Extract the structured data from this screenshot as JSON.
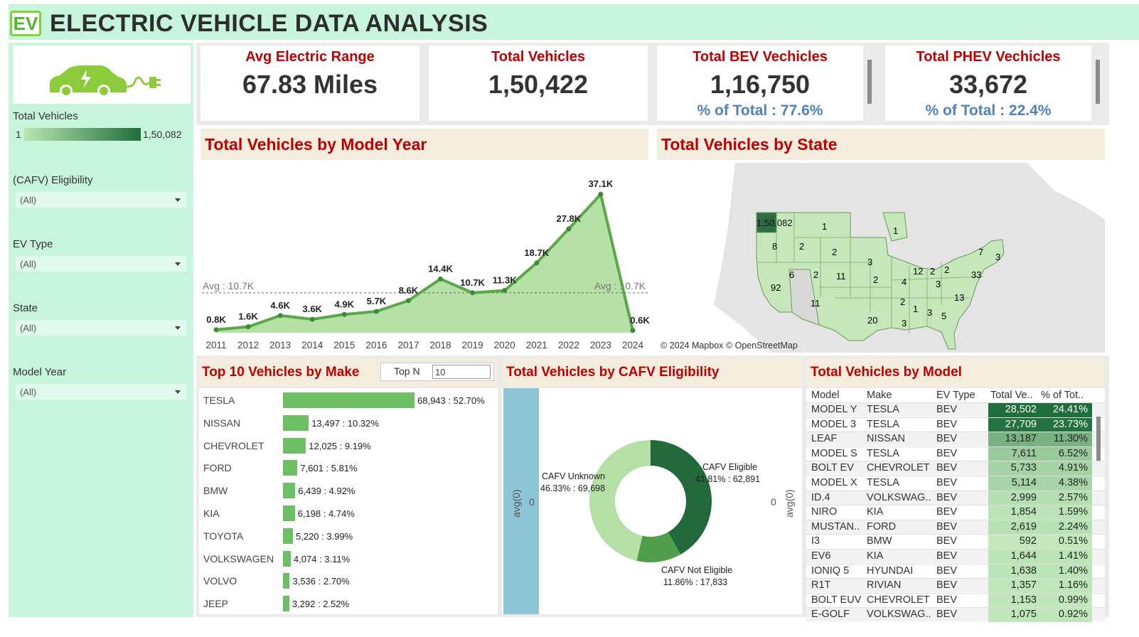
{
  "header": {
    "logo": "EV",
    "title": "ELECTRIC VEHICLE DATA ANALYSIS"
  },
  "sidebar": {
    "legend_label": "Total Vehicles",
    "legend_min": "1",
    "legend_max": "1,50,082",
    "filters": [
      {
        "label": "(CAFV) Eligibility",
        "value": "(All)"
      },
      {
        "label": "EV Type",
        "value": "(All)"
      },
      {
        "label": "State",
        "value": "(All)"
      },
      {
        "label": "Model Year",
        "value": "(All)"
      }
    ]
  },
  "kpis": [
    {
      "title": "Avg Electric Range",
      "value": "67.83 Miles",
      "sub": ""
    },
    {
      "title": "Total Vehicles",
      "value": "1,50,422",
      "sub": ""
    },
    {
      "title": "Total BEV Vechicles",
      "value": "1,16,750",
      "sub": "% of Total : 77.6%"
    },
    {
      "title": "Total PHEV Vechicles",
      "value": "33,672",
      "sub": "% of Total : 22.4%"
    }
  ],
  "chart_data": [
    {
      "type": "area",
      "title": "Total Vehicles by Model Year",
      "x": [
        "2011",
        "2012",
        "2013",
        "2014",
        "2015",
        "2016",
        "2017",
        "2018",
        "2019",
        "2020",
        "2021",
        "2022",
        "2023",
        "2024"
      ],
      "values": [
        0.8,
        1.6,
        4.6,
        3.6,
        4.9,
        5.7,
        8.6,
        14.4,
        10.7,
        11.3,
        18.7,
        27.8,
        37.1,
        0.6
      ],
      "labels": [
        "0.8K",
        "1.6K",
        "4.6K",
        "3.6K",
        "4.9K",
        "5.7K",
        "8.6K",
        "14.4K",
        "10.7K",
        "11.3K",
        "18.7K",
        "27.8K",
        "37.1K",
        "0.6K"
      ],
      "ylim": [
        0,
        40
      ],
      "reference_line": {
        "value": 10.7,
        "label": "Avg : 10.7K"
      },
      "color": "#5ba84a"
    },
    {
      "type": "bar",
      "title": "Top 10  Vehicles by Make",
      "top_n_label": "Top N",
      "top_n_value": "10",
      "categories": [
        "TESLA",
        "NISSAN",
        "CHEVROLET",
        "FORD",
        "BMW",
        "KIA",
        "TOYOTA",
        "VOLKSWAGEN",
        "VOLVO",
        "JEEP"
      ],
      "values": [
        68943,
        13497,
        12025,
        7601,
        6439,
        6198,
        5220,
        4074,
        3536,
        3292
      ],
      "labels": [
        "68,943 : 52.70%",
        "13,497 : 10.32%",
        "12,025 : 9.19%",
        "7,601 : 5.81%",
        "6,439 : 4.92%",
        "6,198 : 4.74%",
        "5,220 : 3.99%",
        "4,074 : 3.11%",
        "3,536 : 2.70%",
        "3,292 : 2.52%"
      ],
      "color": "#6cbf63"
    },
    {
      "type": "pie",
      "title": "Total Vehicles by CAFV Eligibility",
      "axis_label": "avg(0)",
      "axis_tick": "0",
      "categories": [
        "CAFV Eligible",
        "CAFV Not Eligible",
        "CAFV Unknown"
      ],
      "values": [
        62891,
        17833,
        69698
      ],
      "label_names": [
        "CAFV Eligible",
        "CAFV Not Eligible",
        "CAFV Unknown"
      ],
      "label_values": [
        "41.81% : 62,891",
        "11.86% : 17,833",
        "46.33% : 69,698"
      ],
      "colors": [
        "#21693a",
        "#4f9e4c",
        "#b4e0a6"
      ]
    }
  ],
  "map": {
    "title": "Total Vehicles by State",
    "attribution": "© 2024 Mapbox © OpenStreetMap",
    "labels": [
      "1,50,082",
      "1",
      "1",
      "8",
      "2",
      "2",
      "3",
      "6",
      "2",
      "11",
      "2",
      "92",
      "11",
      "20",
      "4",
      "12",
      "2",
      "2",
      "7",
      "3",
      "33",
      "3",
      "13",
      "2",
      "1",
      "3",
      "5",
      "3"
    ]
  },
  "model_table": {
    "title": "Total Vehicles by Model",
    "columns": [
      "Model",
      "Make",
      "EV Type",
      "Total Ve..",
      "% of Tot.."
    ],
    "rows": [
      {
        "model": "MODEL Y",
        "make": "TESLA",
        "type": "BEV",
        "total": "28,502",
        "pct": "24.41%",
        "level": 1.0
      },
      {
        "model": "MODEL 3",
        "make": "TESLA",
        "type": "BEV",
        "total": "27,709",
        "pct": "23.73%",
        "level": 0.97
      },
      {
        "model": "LEAF",
        "make": "NISSAN",
        "type": "BEV",
        "total": "13,187",
        "pct": "11.30%",
        "level": 0.46
      },
      {
        "model": "MODEL S",
        "make": "TESLA",
        "type": "BEV",
        "total": "7,611",
        "pct": "6.52%",
        "level": 0.27
      },
      {
        "model": "BOLT EV",
        "make": "CHEVROLET",
        "type": "BEV",
        "total": "5,733",
        "pct": "4.91%",
        "level": 0.2
      },
      {
        "model": "MODEL X",
        "make": "TESLA",
        "type": "BEV",
        "total": "5,114",
        "pct": "4.38%",
        "level": 0.18
      },
      {
        "model": "ID.4",
        "make": "VOLKSWAG..",
        "type": "BEV",
        "total": "2,999",
        "pct": "2.57%",
        "level": 0.1
      },
      {
        "model": "NIRO",
        "make": "KIA",
        "type": "BEV",
        "total": "1,854",
        "pct": "1.59%",
        "level": 0.065
      },
      {
        "model": "MUSTAN..",
        "make": "FORD",
        "type": "BEV",
        "total": "2,619",
        "pct": "2.24%",
        "level": 0.09
      },
      {
        "model": "I3",
        "make": "BMW",
        "type": "BEV",
        "total": "592",
        "pct": "0.51%",
        "level": 0.02
      },
      {
        "model": "EV6",
        "make": "KIA",
        "type": "BEV",
        "total": "1,644",
        "pct": "1.41%",
        "level": 0.058
      },
      {
        "model": "IONIQ 5",
        "make": "HYUNDAI",
        "type": "BEV",
        "total": "1,638",
        "pct": "1.40%",
        "level": 0.057
      },
      {
        "model": "R1T",
        "make": "RIVIAN",
        "type": "BEV",
        "total": "1,357",
        "pct": "1.16%",
        "level": 0.048
      },
      {
        "model": "BOLT EUV",
        "make": "CHEVROLET",
        "type": "BEV",
        "total": "1,153",
        "pct": "0.99%",
        "level": 0.04
      },
      {
        "model": "E-GOLF",
        "make": "VOLKSWAG..",
        "type": "BEV",
        "total": "1,075",
        "pct": "0.92%",
        "level": 0.038
      }
    ]
  },
  "colors": {
    "accent": "#c00000",
    "sidebar_bg": "#c6f5dc",
    "panel_title_bg": "#f4eddd",
    "kpi_sub": "#4f81bd"
  }
}
